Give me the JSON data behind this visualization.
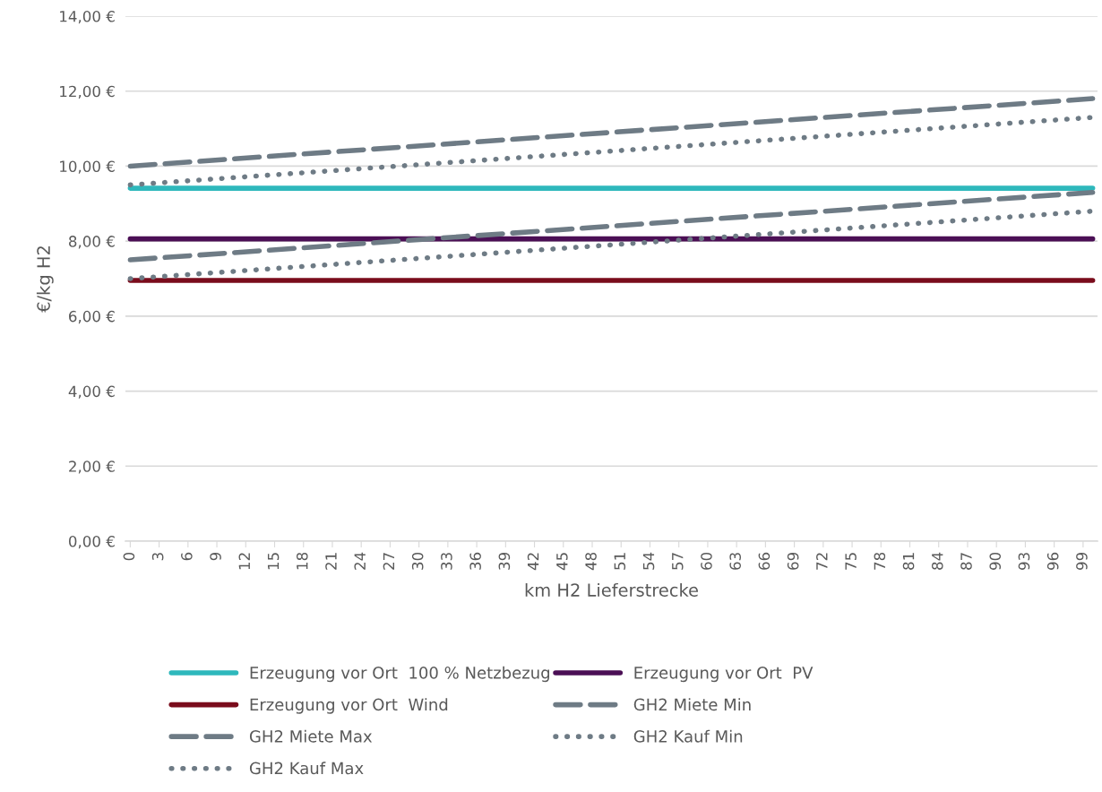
{
  "chart_data": {
    "type": "line",
    "xlabel": "km H2 Lieferstrecke",
    "ylabel": "€/kg H2",
    "x": [
      0,
      100
    ],
    "xlim": [
      -0.5,
      100.5
    ],
    "xticks": [
      0,
      3,
      6,
      9,
      12,
      15,
      18,
      21,
      24,
      27,
      30,
      33,
      36,
      39,
      42,
      45,
      48,
      51,
      54,
      57,
      60,
      63,
      66,
      69,
      72,
      75,
      78,
      81,
      84,
      87,
      90,
      93,
      96,
      99
    ],
    "ylim": [
      0,
      14
    ],
    "yticks": [
      {
        "value": 0,
        "label": "0,00 €"
      },
      {
        "value": 2,
        "label": "2,00 €"
      },
      {
        "value": 4,
        "label": "4,00 €"
      },
      {
        "value": 6,
        "label": "6,00 €"
      },
      {
        "value": 8,
        "label": "8,00 €"
      },
      {
        "value": 10,
        "label": "10,00 €"
      },
      {
        "value": 12,
        "label": "12,00 €"
      },
      {
        "value": 14,
        "label": "14,00 €"
      }
    ],
    "grid": "y",
    "legend": "bottom",
    "series": [
      {
        "name": "Erzeugung vor Ort  100 % Netzbezug",
        "color": "#2eb8bc",
        "line_style": "solid",
        "values": [
          9.41,
          9.41
        ]
      },
      {
        "name": "Erzeugung vor Ort  PV",
        "color": "#4b0f55",
        "line_style": "solid",
        "values": [
          8.06,
          8.06
        ]
      },
      {
        "name": "Erzeugung vor Ort  Wind",
        "color": "#7a0c1c",
        "line_style": "solid",
        "values": [
          6.95,
          6.95
        ]
      },
      {
        "name": "GH2 Miete Min",
        "color": "#6e7b85",
        "line_style": "dashed",
        "values": [
          7.5,
          9.3
        ]
      },
      {
        "name": "GH2 Miete Max",
        "color": "#6e7b85",
        "line_style": "dashed",
        "values": [
          10.0,
          11.8
        ]
      },
      {
        "name": "GH2 Kauf Min",
        "color": "#6e7b85",
        "line_style": "dotted",
        "values": [
          7.0,
          8.8
        ]
      },
      {
        "name": "GH2 Kauf Max",
        "color": "#6e7b85",
        "line_style": "dotted",
        "values": [
          9.5,
          11.3
        ]
      }
    ]
  }
}
